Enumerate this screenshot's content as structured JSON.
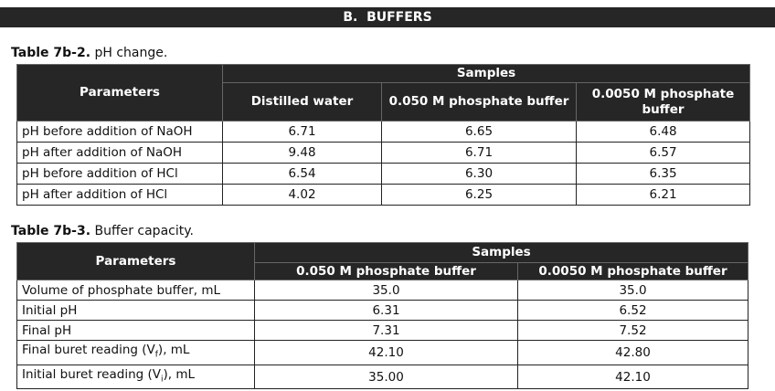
{
  "header": {
    "title": "B.  BUFFERS"
  },
  "tables": [
    {
      "caption": {
        "label": "Table 7b-2.",
        "text": " pH change."
      },
      "group_header": "Samples",
      "columns": [
        "Parameters",
        "Distilled water",
        "0.050 M phosphate buffer",
        "0.0050 M phosphate buffer"
      ],
      "rows": [
        {
          "label": [
            "pH before addition of NaOH"
          ],
          "values": [
            "6.71",
            "6.65",
            "6.48"
          ]
        },
        {
          "label": [
            "pH after addition of NaOH"
          ],
          "values": [
            "9.48",
            "6.71",
            "6.57"
          ]
        },
        {
          "label": [
            "pH before addition of HCl"
          ],
          "values": [
            "6.54",
            "6.30",
            "6.35"
          ]
        },
        {
          "label": [
            "pH after addition of HCl"
          ],
          "values": [
            "4.02",
            "6.25",
            "6.21"
          ]
        }
      ]
    },
    {
      "caption": {
        "label": "Table 7b-3.",
        "text": " Buffer capacity."
      },
      "group_header": "Samples",
      "columns": [
        "Parameters",
        "0.050 M phosphate buffer",
        "0.0050 M phosphate buffer"
      ],
      "rows": [
        {
          "label": [
            "Volume of phosphate buffer, mL"
          ],
          "values": [
            "35.0",
            "35.0"
          ]
        },
        {
          "label": [
            "Initial pH"
          ],
          "values": [
            "6.31",
            "6.52"
          ]
        },
        {
          "label": [
            "Final pH"
          ],
          "values": [
            "7.31",
            "7.52"
          ]
        },
        {
          "label": [
            "Final buret reading (V",
            "f",
            "), mL"
          ],
          "values": [
            "42.10",
            "42.80"
          ]
        },
        {
          "label": [
            "Initial buret reading (V",
            "i",
            "), mL"
          ],
          "values": [
            "35.00",
            "42.10"
          ]
        }
      ]
    }
  ]
}
